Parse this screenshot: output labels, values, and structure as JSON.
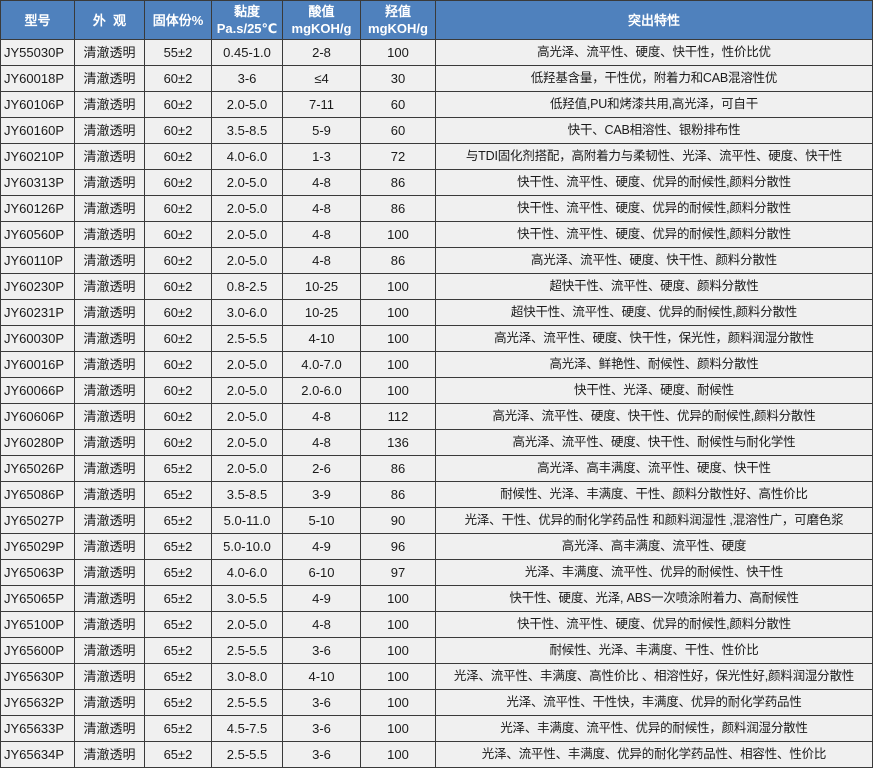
{
  "header": {
    "model": "型号",
    "appearance": "外  观",
    "solids": "固体份%",
    "viscosity_line1": "黏度",
    "viscosity_line2": "Pa.s/25℃",
    "acid_line1": "酸值",
    "acid_line2": "mgKOH/g",
    "hydroxyl_line1": "羟值",
    "hydroxyl_line2": "mgKOH/g",
    "features": "突出特性"
  },
  "colors": {
    "header_bg": "#4f81bd",
    "header_text": "#ffffff",
    "row_bg": "#f0f0f0"
  },
  "rows": [
    [
      "JY55030P",
      "清澈透明",
      "55±2",
      "0.45-1.0",
      "2-8",
      "100",
      "高光泽、流平性、硬度、快干性，性价比优"
    ],
    [
      "JY60018P",
      "清澈透明",
      "60±2",
      "3-6",
      "≤4",
      "30",
      "低羟基含量，干性优，附着力和CAB混溶性优"
    ],
    [
      "JY60106P",
      "清澈透明",
      "60±2",
      "2.0-5.0",
      "7-11",
      "60",
      "低羟值,PU和烤漆共用,高光泽，可自干"
    ],
    [
      "JY60160P",
      "清澈透明",
      "60±2",
      "3.5-8.5",
      "5-9",
      "60",
      "快干、CAB相溶性、银粉排布性"
    ],
    [
      "JY60210P",
      "清澈透明",
      "60±2",
      "4.0-6.0",
      "1-3",
      "72",
      "与TDI固化剂搭配，高附着力与柔韧性、光泽、流平性、硬度、快干性"
    ],
    [
      "JY60313P",
      "清澈透明",
      "60±2",
      "2.0-5.0",
      "4-8",
      "86",
      "快干性、流平性、硬度、优异的耐候性,颜料分散性"
    ],
    [
      "JY60126P",
      "清澈透明",
      "60±2",
      "2.0-5.0",
      "4-8",
      "86",
      "快干性、流平性、硬度、优异的耐候性,颜料分散性"
    ],
    [
      "JY60560P",
      "清澈透明",
      "60±2",
      "2.0-5.0",
      "4-8",
      "100",
      "快干性、流平性、硬度、优异的耐候性,颜料分散性"
    ],
    [
      "JY60110P",
      "清澈透明",
      "60±2",
      "2.0-5.0",
      "4-8",
      "86",
      "高光泽、流平性、硬度、快干性、颜料分散性"
    ],
    [
      "JY60230P",
      "清澈透明",
      "60±2",
      "0.8-2.5",
      "10-25",
      "100",
      "超快干性、流平性、硬度、颜料分散性"
    ],
    [
      "JY60231P",
      "清澈透明",
      "60±2",
      "3.0-6.0",
      "10-25",
      "100",
      "超快干性、流平性、硬度、优异的耐候性,颜料分散性"
    ],
    [
      "JY60030P",
      "清澈透明",
      "60±2",
      "2.5-5.5",
      "4-10",
      "100",
      "高光泽、流平性、硬度、快干性，保光性，颜料润湿分散性"
    ],
    [
      "JY60016P",
      "清澈透明",
      "60±2",
      "2.0-5.0",
      "4.0-7.0",
      "100",
      "高光泽、鲜艳性、耐候性、颜料分散性"
    ],
    [
      "JY60066P",
      "清澈透明",
      "60±2",
      "2.0-5.0",
      "2.0-6.0",
      "100",
      "快干性、光泽、硬度、耐候性"
    ],
    [
      "JY60606P",
      "清澈透明",
      "60±2",
      "2.0-5.0",
      "4-8",
      "112",
      "高光泽、流平性、硬度、快干性、优异的耐候性,颜料分散性"
    ],
    [
      "JY60280P",
      "清澈透明",
      "60±2",
      "2.0-5.0",
      "4-8",
      "136",
      "高光泽、流平性、硬度、快干性、耐候性与耐化学性"
    ],
    [
      "JY65026P",
      "清澈透明",
      "65±2",
      "2.0-5.0",
      "2-6",
      "86",
      "高光泽、高丰满度、流平性、硬度、快干性"
    ],
    [
      "JY65086P",
      "清澈透明",
      "65±2",
      "3.5-8.5",
      "3-9",
      "86",
      "耐候性、光泽、丰满度、干性、颜料分散性好、高性价比"
    ],
    [
      "JY65027P",
      "清澈透明",
      "65±2",
      "5.0-11.0",
      "5-10",
      "90",
      "光泽、干性、优异的耐化学药品性 和颜料润湿性 ,混溶性广，可磨色浆"
    ],
    [
      "JY65029P",
      "清澈透明",
      "65±2",
      "5.0-10.0",
      "4-9",
      "96",
      "高光泽、高丰满度、流平性、硬度"
    ],
    [
      "JY65063P",
      "清澈透明",
      "65±2",
      "4.0-6.0",
      "6-10",
      "97",
      "光泽、丰满度、流平性、优异的耐候性、快干性"
    ],
    [
      "JY65065P",
      "清澈透明",
      "65±2",
      "3.0-5.5",
      "4-9",
      "100",
      "快干性、硬度、光泽, ABS一次喷涂附着力、高耐候性"
    ],
    [
      "JY65100P",
      "清澈透明",
      "65±2",
      "2.0-5.0",
      "4-8",
      "100",
      "快干性、流平性、硬度、优异的耐候性,颜料分散性"
    ],
    [
      "JY65600P",
      "清澈透明",
      "65±2",
      "2.5-5.5",
      "3-6",
      "100",
      "耐候性、光泽、丰满度、干性、性价比"
    ],
    [
      "JY65630P",
      "清澈透明",
      "65±2",
      "3.0-8.0",
      "4-10",
      "100",
      "光泽、流平性、丰满度、高性价比  、相溶性好，保光性好,颜料润湿分散性"
    ],
    [
      "JY65632P",
      "清澈透明",
      "65±2",
      "2.5-5.5",
      "3-6",
      "100",
      "光泽、流平性、干性快，丰满度、优异的耐化学药品性"
    ],
    [
      "JY65633P",
      "清澈透明",
      "65±2",
      "4.5-7.5",
      "3-6",
      "100",
      "光泽、丰满度、流平性、优异的耐候性，颜料润湿分散性"
    ],
    [
      "JY65634P",
      "清澈透明",
      "65±2",
      "2.5-5.5",
      "3-6",
      "100",
      "光泽、流平性、丰满度、优异的耐化学药品性、相容性、性价比"
    ]
  ]
}
